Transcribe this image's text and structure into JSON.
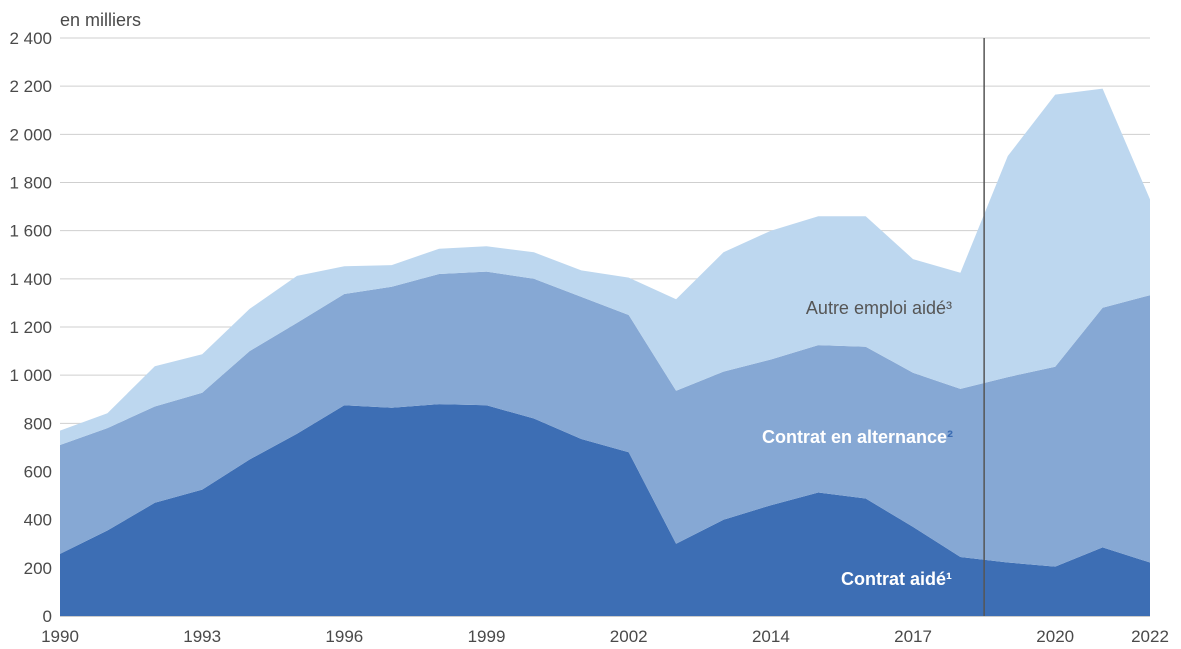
{
  "chart_data": {
    "type": "area",
    "stacked": true,
    "unit_label": "en milliers",
    "ylim": [
      0,
      2400
    ],
    "yticks": [
      0,
      200,
      400,
      600,
      800,
      1000,
      1200,
      1400,
      1600,
      1800,
      2000,
      2200,
      2400
    ],
    "ytick_labels": [
      "0",
      "200",
      "400",
      "600",
      "800",
      "1 000",
      "1 200",
      "1 400",
      "1 600",
      "1 800",
      "2 000",
      "2 200",
      "2 400"
    ],
    "xlim": [
      1990,
      2022
    ],
    "xtick_labels": [
      "1990",
      "1993",
      "1996",
      "1999",
      "2002",
      "2014",
      "2017",
      "2020",
      "2022"
    ],
    "grid": true,
    "legend": "inline",
    "x": [
      1990,
      1991,
      1992,
      1993,
      1994,
      1995,
      1996,
      1997,
      1998,
      1999,
      2000,
      2001,
      2002,
      2003,
      2013,
      2014,
      2015,
      2016,
      2017,
      2018,
      2019,
      2020,
      2021,
      2022
    ],
    "series": [
      {
        "name": "Contrat aidé¹",
        "color": "#3d6eb4",
        "values": [
          258,
          355,
          470,
          525,
          650,
          757,
          875,
          865,
          880,
          875,
          820,
          735,
          680,
          300,
          400,
          460,
          513,
          488,
          370,
          245,
          222,
          205,
          285,
          222
        ]
      },
      {
        "name": "Contrat en alternance²",
        "color": "#86a8d4",
        "values": [
          452,
          425,
          400,
          402,
          450,
          460,
          462,
          502,
          540,
          555,
          580,
          590,
          570,
          635,
          615,
          605,
          612,
          630,
          640,
          698,
          770,
          830,
          995,
          1110
        ]
      },
      {
        "name": "Autre emploi aidé³",
        "color": "#bdd7ef",
        "values": [
          60,
          62,
          167,
          160,
          175,
          195,
          115,
          90,
          105,
          105,
          110,
          110,
          155,
          380,
          495,
          535,
          535,
          542,
          472,
          482,
          918,
          1130,
          910,
          398
        ]
      }
    ],
    "divider_after": 2018
  }
}
